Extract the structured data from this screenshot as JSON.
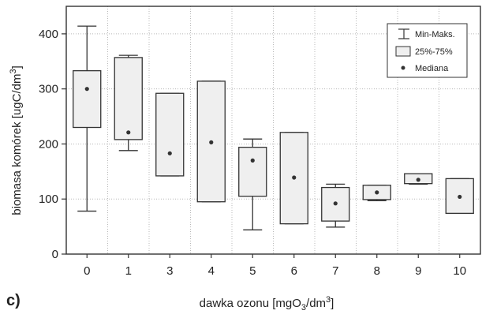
{
  "chart_data": {
    "type": "box",
    "panel_label": "c)",
    "xlabel": {
      "base": "dawka ozonu [mgO",
      "sub": "3",
      "mid": "/dm",
      "sup": "3",
      "end": "]"
    },
    "ylabel": {
      "base": "biomasa komórek [ugC/dm",
      "sup": "3",
      "end": "]"
    },
    "ylim": [
      0,
      450
    ],
    "yticks": [
      0,
      100,
      200,
      300,
      400
    ],
    "grid": true,
    "legend_position": "top-right",
    "legend": {
      "range": "Min-Maks.",
      "iqr": "25%-75%",
      "median": "Mediana"
    },
    "colors": {
      "box_fill": "#efefef",
      "stroke": "#333333",
      "grid": "#b8b8b8",
      "median_point": "#333333"
    },
    "categories": [
      "0",
      "1",
      "3",
      "4",
      "5",
      "6",
      "7",
      "8",
      "9",
      "10"
    ],
    "boxes": [
      {
        "min": 78,
        "q1": 230,
        "median": 300,
        "q3": 333,
        "max": 414
      },
      {
        "min": 188,
        "q1": 208,
        "median": 221,
        "q3": 357,
        "max": 361
      },
      {
        "min": 142,
        "q1": 142,
        "median": 183,
        "q3": 292,
        "max": 292
      },
      {
        "min": 95,
        "q1": 95,
        "median": 203,
        "q3": 314,
        "max": 314
      },
      {
        "min": 44,
        "q1": 105,
        "median": 170,
        "q3": 194,
        "max": 209
      },
      {
        "min": 55,
        "q1": 55,
        "median": 139,
        "q3": 221,
        "max": 221
      },
      {
        "min": 49,
        "q1": 60,
        "median": 92,
        "q3": 121,
        "max": 127
      },
      {
        "min": 97,
        "q1": 99,
        "median": 112,
        "q3": 125,
        "max": 125
      },
      {
        "min": 127,
        "q1": 128,
        "median": 135,
        "q3": 146,
        "max": 146
      },
      {
        "min": 74,
        "q1": 74,
        "median": 104,
        "q3": 137,
        "max": 137
      }
    ]
  }
}
